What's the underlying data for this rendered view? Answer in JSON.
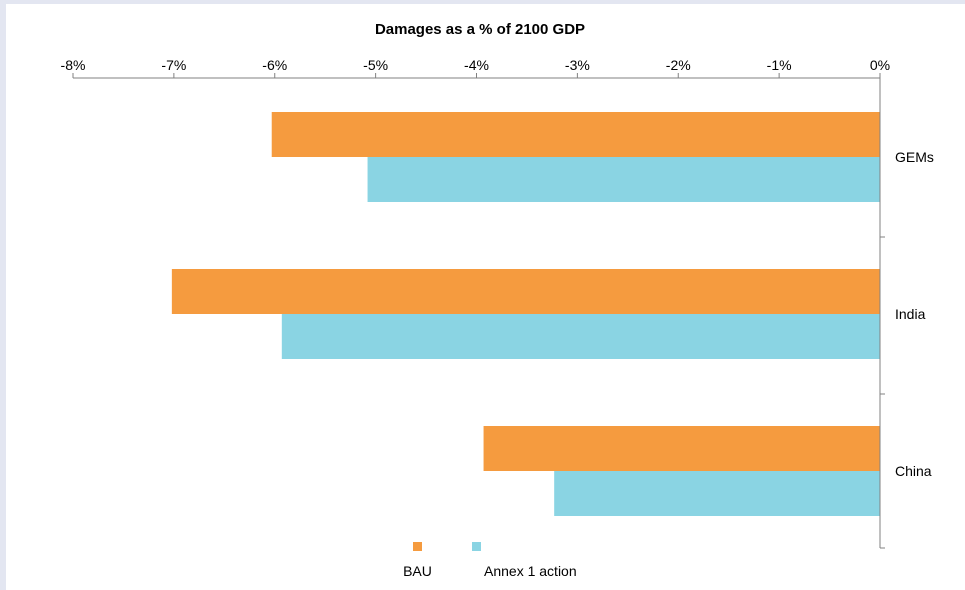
{
  "chart_data": {
    "type": "bar",
    "orientation": "horizontal",
    "title": "Damages as a % of 2100 GDP",
    "xlabel": "",
    "ylabel": "",
    "xlim": [
      -8,
      0
    ],
    "x_ticks": [
      -8,
      -7,
      -6,
      -5,
      -4,
      -3,
      -2,
      -1,
      0
    ],
    "x_tick_labels": [
      "-8%",
      "-7%",
      "-6%",
      "-5%",
      "-4%",
      "-3%",
      "-2%",
      "-1%",
      "0%"
    ],
    "x_axis_position": "top",
    "y_axis_position": "right",
    "categories": [
      "GEMs",
      "India",
      "China"
    ],
    "series": [
      {
        "name": "BAU",
        "color": "#f59b3f",
        "values": [
          -6.03,
          -7.02,
          -3.93
        ]
      },
      {
        "name": "Annex 1 action",
        "color": "#8ad4e3",
        "values": [
          -5.08,
          -5.93,
          -3.23
        ]
      }
    ],
    "grid": false,
    "legend_position": "bottom"
  }
}
